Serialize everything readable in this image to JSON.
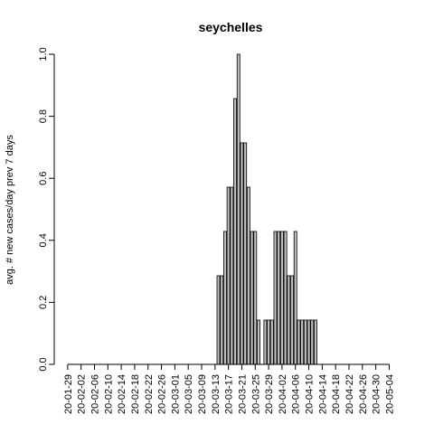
{
  "chart_data": {
    "type": "bar",
    "title": "seychelles",
    "ylabel": "avg. # new cases/day prev  7  days",
    "xlabel": "",
    "ylim": [
      0,
      1.0
    ],
    "yticks": [
      "0.0",
      "0.2",
      "0.4",
      "0.6",
      "0.8",
      "1.0"
    ],
    "xtick_labels": [
      "20-01-29",
      "20-02-02",
      "20-02-06",
      "20-02-10",
      "20-02-14",
      "20-02-18",
      "20-02-22",
      "20-02-26",
      "20-03-01",
      "20-03-05",
      "20-03-09",
      "20-03-13",
      "20-03-17",
      "20-03-21",
      "20-03-25",
      "20-03-29",
      "20-04-02",
      "20-04-06",
      "20-04-10",
      "20-04-14",
      "20-04-18",
      "20-04-22",
      "20-04-26",
      "20-04-30",
      "20-05-04"
    ],
    "start_date": "2020-01-29",
    "values": [
      0,
      0,
      0,
      0,
      0,
      0,
      0,
      0,
      0,
      0,
      0,
      0,
      0,
      0,
      0,
      0,
      0,
      0,
      0,
      0,
      0,
      0,
      0,
      0,
      0,
      0,
      0,
      0,
      0,
      0,
      0,
      0,
      0,
      0,
      0,
      0,
      0,
      0,
      0,
      0,
      0,
      0,
      0,
      0,
      0,
      0.2857,
      0.2857,
      0.4286,
      0.5714,
      0.5714,
      0.8571,
      1.0,
      0.7143,
      0.7143,
      0.5714,
      0.4286,
      0.4286,
      0.1429,
      0,
      0.1429,
      0.1429,
      0.1429,
      0.4286,
      0.4286,
      0.4286,
      0.4286,
      0.2857,
      0.2857,
      0.4286,
      0.1429,
      0.1429,
      0.1429,
      0.1429,
      0.1429,
      0.1429,
      0,
      0,
      0,
      0,
      0,
      0,
      0,
      0,
      0,
      0,
      0,
      0,
      0,
      0,
      0,
      0,
      0,
      0,
      0,
      0,
      0,
      0,
      0
    ]
  }
}
